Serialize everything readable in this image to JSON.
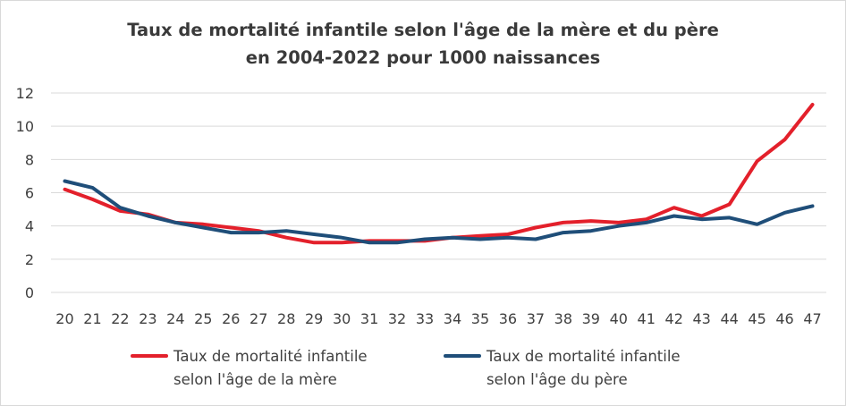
{
  "chart_data": {
    "type": "line",
    "title_lines": [
      "Taux de mortalité infantile selon l'âge de la mère et du père",
      "en 2004-2022 pour 1000 naissances"
    ],
    "xlabel": "",
    "ylabel": "",
    "categories": [
      "20",
      "21",
      "22",
      "23",
      "24",
      "25",
      "26",
      "27",
      "28",
      "29",
      "30",
      "31",
      "32",
      "33",
      "34",
      "35",
      "36",
      "37",
      "38",
      "39",
      "40",
      "41",
      "42",
      "43",
      "44",
      "45",
      "46",
      "47"
    ],
    "ylim": [
      0,
      12
    ],
    "yticks": [
      0,
      2,
      4,
      6,
      8,
      10,
      12
    ],
    "grid": "horizontal",
    "legend_position": "bottom",
    "series": [
      {
        "name_lines": [
          "Taux de mortalité infantile",
          "selon l'âge de la mère"
        ],
        "color": "#e3202b",
        "values": [
          6.2,
          5.6,
          4.9,
          4.7,
          4.2,
          4.1,
          3.9,
          3.7,
          3.3,
          3.0,
          3.0,
          3.1,
          3.1,
          3.1,
          3.3,
          3.4,
          3.5,
          3.9,
          4.2,
          4.3,
          4.2,
          4.4,
          5.1,
          4.6,
          5.3,
          7.9,
          9.2,
          11.3
        ]
      },
      {
        "name_lines": [
          "Taux de mortalité infantile",
          "selon l'âge du père"
        ],
        "color": "#1f4e79",
        "values": [
          6.7,
          6.3,
          5.1,
          4.6,
          4.2,
          3.9,
          3.6,
          3.6,
          3.7,
          3.5,
          3.3,
          3.0,
          3.0,
          3.2,
          3.3,
          3.2,
          3.3,
          3.2,
          3.6,
          3.7,
          4.0,
          4.2,
          4.6,
          4.4,
          4.5,
          4.1,
          4.8,
          5.2
        ]
      }
    ]
  }
}
